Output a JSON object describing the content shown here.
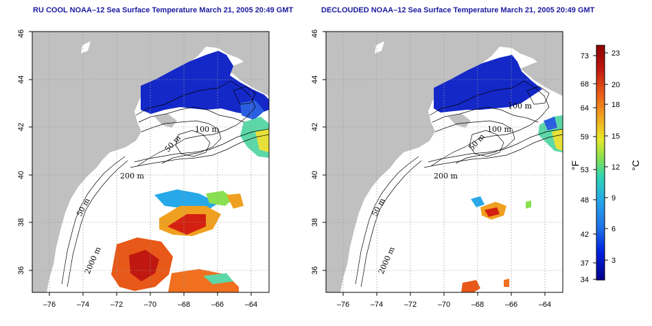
{
  "panels": [
    {
      "title": "RU COOL NOAA–12 Sea Surface Temperature March 21, 2005 20:49 GMT",
      "contour_labels": [
        "100 m",
        "50 m",
        "200 m",
        "50 m",
        "2000 m"
      ]
    },
    {
      "title": "DECLOUDED NOAA–12 Sea Surface Temperature March 21, 2005 20:49 GMT",
      "contour_labels": [
        "100 m",
        "100 m",
        "50 m",
        "200 m",
        "50 m",
        "2000 m"
      ]
    }
  ],
  "axes": {
    "x_ticks": [
      "–76",
      "–74",
      "–72",
      "–70",
      "–68",
      "–66",
      "–64"
    ],
    "y_ticks": [
      "36",
      "38",
      "40",
      "42",
      "44",
      "46"
    ],
    "lon_range": [
      -77,
      -63
    ],
    "lat_range": [
      35,
      46
    ]
  },
  "colorbar": {
    "fahrenheit_label": "°F",
    "celsius_label": "°C",
    "fahrenheit_ticks": [
      "73",
      "68",
      "64",
      "59",
      "53",
      "48",
      "42",
      "37",
      "34"
    ],
    "celsius_ticks": [
      "23",
      "20",
      "18",
      "15",
      "12",
      "9",
      "6",
      "3"
    ],
    "colors": [
      "#00008b",
      "#0022dd",
      "#1f6fe8",
      "#27a8e8",
      "#2ed6b4",
      "#8ae050",
      "#e8e82a",
      "#f0a020",
      "#e85818",
      "#c01810",
      "#8b0000"
    ]
  },
  "colors": {
    "land": "#c0c0c0",
    "title": "#1a1aa0",
    "cold_water": "#1428c8",
    "grid": "#9a9a9a"
  }
}
